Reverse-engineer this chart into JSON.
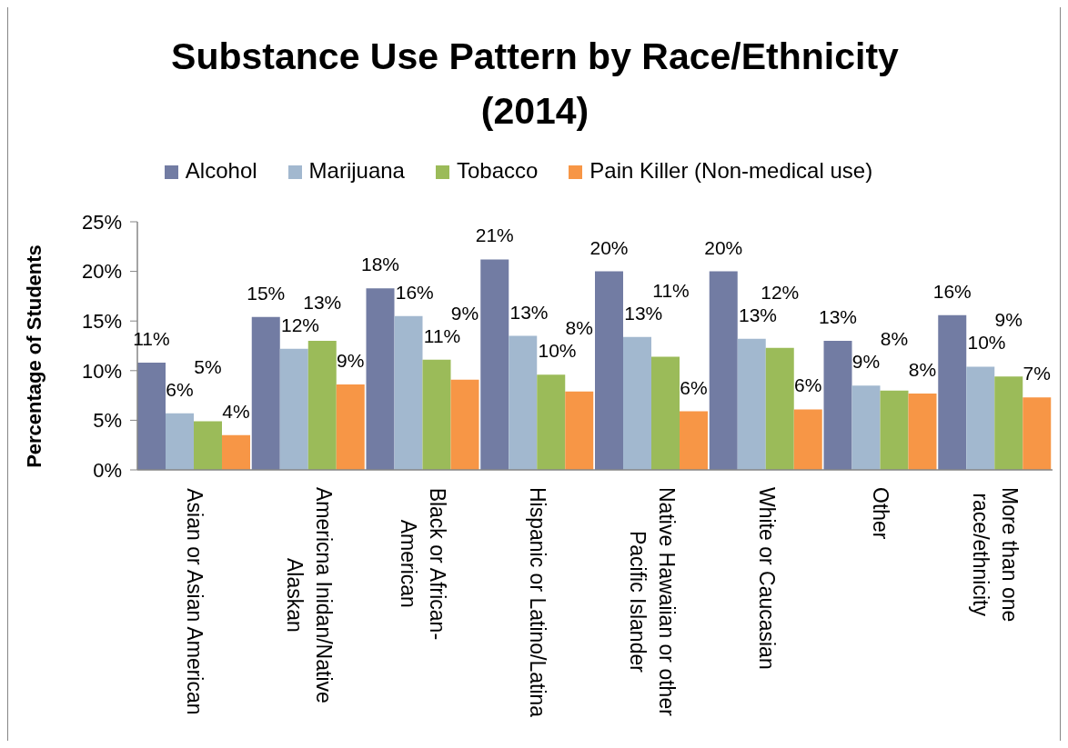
{
  "chart_data": {
    "type": "bar",
    "title": "Substance Use Pattern by Race/Ethnicity (2014)",
    "ylabel": "Percentage of Students",
    "categories": [
      "Asian or Asian American",
      "Americna Inidan/Native Alaskan",
      "Black or African-American",
      "Hispanic or Latino/Latina",
      "Native Hawaiian or other Pacific Islander",
      "White or Caucasian",
      "Other",
      "More than one race/ethnicity"
    ],
    "series": [
      {
        "name": "Alcohol",
        "color": "#727ca3",
        "values": [
          10.8,
          15.4,
          18.3,
          21.2,
          20.0,
          20.0,
          13.0,
          15.6
        ],
        "value_labels": [
          "11%",
          "15%",
          "18%",
          "21%",
          "20%",
          "20%",
          "13%",
          "16%"
        ]
      },
      {
        "name": "Marijuana",
        "color": "#a2b8cf",
        "values": [
          5.7,
          12.2,
          15.5,
          13.5,
          13.4,
          13.2,
          8.5,
          10.4
        ],
        "value_labels": [
          "6%",
          "12%",
          "16%",
          "13%",
          "13%",
          "13%",
          "9%",
          "10%"
        ]
      },
      {
        "name": "Tobacco",
        "color": "#9bbb59",
        "values": [
          4.9,
          13.0,
          11.1,
          9.6,
          11.4,
          12.3,
          8.0,
          9.4
        ],
        "value_labels": [
          "5%",
          "13%",
          "11%",
          "10%",
          "11%",
          "12%",
          "8%",
          "9%"
        ]
      },
      {
        "name": "Pain Killer (Non-medical use)",
        "color": "#f79646",
        "values": [
          3.5,
          8.6,
          9.1,
          7.9,
          5.9,
          6.1,
          7.7,
          7.3
        ],
        "value_labels": [
          "4%",
          "9%",
          "9%",
          "8%",
          "6%",
          "6%",
          "8%",
          "7%"
        ]
      }
    ],
    "ylim": [
      0,
      25
    ],
    "yticks": [
      {
        "value": 0,
        "label": "0%"
      },
      {
        "value": 5,
        "label": "5%"
      },
      {
        "value": 10,
        "label": "10%"
      },
      {
        "value": 15,
        "label": "15%"
      },
      {
        "value": 20,
        "label": "20%"
      },
      {
        "value": 25,
        "label": "25%"
      }
    ],
    "legend": "top"
  }
}
